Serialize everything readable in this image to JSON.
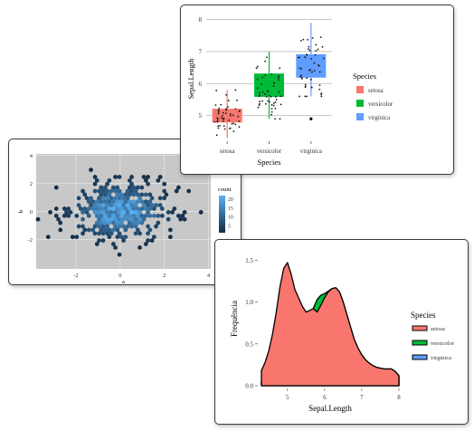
{
  "chart_data": [
    {
      "type": "boxplot",
      "xlabel": "Species",
      "ylabel": "Sepal.Length",
      "categories": [
        "setosa",
        "versicolor",
        "virginica"
      ],
      "yticks": [
        "5",
        "6",
        "7",
        "8"
      ],
      "ylim": [
        4.2,
        8.1
      ],
      "legend": {
        "title": "Species",
        "position": "right",
        "entries": [
          "setosa",
          "versicolor",
          "virginica"
        ]
      },
      "colors": {
        "setosa": "#f8766d",
        "versicolor": "#00ba38",
        "virginica": "#619cff"
      },
      "boxes": [
        {
          "name": "setosa",
          "min": 4.3,
          "q1": 4.8,
          "median": 5.0,
          "q3": 5.2,
          "max": 5.8,
          "outliers": []
        },
        {
          "name": "versicolor",
          "min": 4.9,
          "q1": 5.6,
          "median": 5.9,
          "q3": 6.3,
          "max": 7.0,
          "outliers": []
        },
        {
          "name": "virginica",
          "min": 5.6,
          "q1": 6.2,
          "median": 6.5,
          "q3": 6.9,
          "max": 7.9,
          "outliers": [
            4.9
          ]
        }
      ],
      "grid": true
    },
    {
      "type": "hexbin",
      "xlabel": "a",
      "ylabel": "b",
      "xticks": [
        "-2",
        "0",
        "2",
        "4"
      ],
      "yticks": [
        "-2",
        "0",
        "2",
        "4"
      ],
      "xlim": [
        -3.8,
        4.1
      ],
      "ylim": [
        -4.1,
        4.1
      ],
      "legend": {
        "title": "count",
        "position": "right",
        "ticks": [
          "20",
          "15",
          "10",
          "5"
        ],
        "range": [
          1,
          22
        ]
      },
      "colors": {
        "low": "#132b43",
        "high": "#56b1f7",
        "panel": "#c8c8c8"
      },
      "grid": true
    },
    {
      "type": "area",
      "xlabel": "Sepal.Length",
      "ylabel": "Frequência",
      "xticks": [
        "5",
        "6",
        "7",
        "8"
      ],
      "yticks": [
        "0.0",
        "0.5",
        "1.0",
        "1.5"
      ],
      "xlim": [
        4.3,
        8.0
      ],
      "ylim": [
        0,
        1.6
      ],
      "legend": {
        "title": "Species",
        "position": "right",
        "entries": [
          "setosa",
          "versicolor",
          "virginica"
        ]
      },
      "colors": {
        "setosa": "#f8766d",
        "versicolor": "#00ba38",
        "virginica": "#619cff"
      },
      "x": [
        4.3,
        4.4,
        4.5,
        4.6,
        4.7,
        4.8,
        4.9,
        5.0,
        5.1,
        5.2,
        5.3,
        5.4,
        5.5,
        5.6,
        5.7,
        5.8,
        5.9,
        6.0,
        6.1,
        6.2,
        6.3,
        6.4,
        6.5,
        6.6,
        6.7,
        6.8,
        6.9,
        7.0,
        7.1,
        7.2,
        7.3,
        7.4,
        7.5,
        7.6,
        7.7,
        7.8,
        7.9,
        8.0
      ],
      "series": [
        {
          "name": "virginica",
          "values": [
            0.05,
            0.06,
            0.07,
            0.07,
            0.08,
            0.09,
            0.11,
            0.12,
            0.13,
            0.14,
            0.15,
            0.16,
            0.17,
            0.18,
            0.21,
            0.26,
            0.32,
            0.4,
            0.48,
            0.58,
            0.68,
            0.72,
            0.68,
            0.6,
            0.52,
            0.45,
            0.38,
            0.33,
            0.29,
            0.26,
            0.24,
            0.22,
            0.21,
            0.2,
            0.2,
            0.2,
            0.17,
            0.12
          ]
        },
        {
          "name": "versicolor",
          "values": [
            0.05,
            0.06,
            0.07,
            0.08,
            0.09,
            0.11,
            0.13,
            0.16,
            0.2,
            0.26,
            0.34,
            0.45,
            0.6,
            0.78,
            0.93,
            1.03,
            1.08,
            1.1,
            1.13,
            1.16,
            1.17,
            1.12,
            1.0,
            0.85,
            0.7,
            0.55,
            0.45,
            0.37,
            0.31,
            0.27,
            0.24,
            0.22,
            0.21,
            0.2,
            0.2,
            0.2,
            0.17,
            0.12
          ]
        },
        {
          "name": "setosa",
          "values": [
            0.18,
            0.28,
            0.42,
            0.62,
            0.88,
            1.18,
            1.4,
            1.47,
            1.33,
            1.15,
            1.05,
            0.95,
            0.88,
            0.9,
            0.92,
            0.88,
            0.96,
            1.05,
            1.12,
            1.16,
            1.17,
            1.12,
            1.0,
            0.85,
            0.7,
            0.55,
            0.45,
            0.37,
            0.31,
            0.27,
            0.24,
            0.22,
            0.21,
            0.2,
            0.2,
            0.2,
            0.17,
            0.12
          ]
        }
      ],
      "grid": true
    }
  ]
}
